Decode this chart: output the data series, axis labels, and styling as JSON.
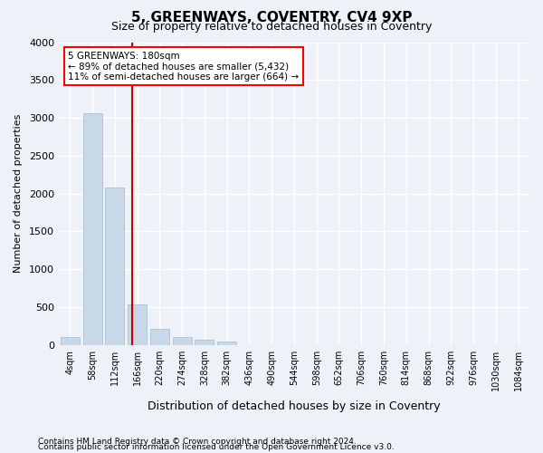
{
  "title": "5, GREENWAYS, COVENTRY, CV4 9XP",
  "subtitle": "Size of property relative to detached houses in Coventry",
  "xlabel": "Distribution of detached houses by size in Coventry",
  "ylabel": "Number of detached properties",
  "bar_color": "#c8d8e8",
  "bar_edge_color": "#a0b8cc",
  "annotation_text_line1": "5 GREENWAYS: 180sqm",
  "annotation_text_line2": "← 89% of detached houses are smaller (5,432)",
  "annotation_text_line3": "11% of semi-detached houses are larger (664) →",
  "footer_line1": "Contains HM Land Registry data © Crown copyright and database right 2024.",
  "footer_line2": "Contains public sector information licensed under the Open Government Licence v3.0.",
  "bin_labels": [
    "4sqm",
    "58sqm",
    "112sqm",
    "166sqm",
    "220sqm",
    "274sqm",
    "328sqm",
    "382sqm",
    "436sqm",
    "490sqm",
    "544sqm",
    "598sqm",
    "652sqm",
    "706sqm",
    "760sqm",
    "814sqm",
    "868sqm",
    "922sqm",
    "976sqm",
    "1030sqm",
    "1084sqm"
  ],
  "bar_values": [
    100,
    3060,
    2080,
    530,
    210,
    100,
    70,
    50,
    0,
    0,
    0,
    0,
    0,
    0,
    0,
    0,
    0,
    0,
    0,
    0,
    0
  ],
  "ylim": [
    0,
    4000
  ],
  "yticks": [
    0,
    500,
    1000,
    1500,
    2000,
    2500,
    3000,
    3500,
    4000
  ],
  "red_line_x": 2.759,
  "red_line_color": "#cc0000",
  "bg_color": "#eef2f8",
  "grid_color": "#ffffff"
}
